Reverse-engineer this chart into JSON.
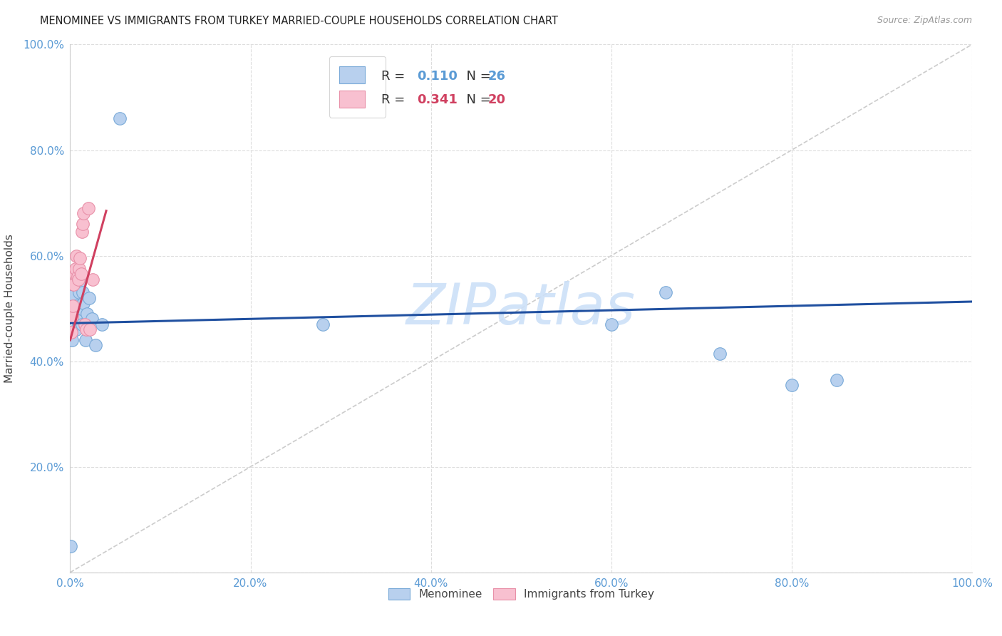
{
  "title": "MENOMINEE VS IMMIGRANTS FROM TURKEY MARRIED-COUPLE HOUSEHOLDS CORRELATION CHART",
  "source": "Source: ZipAtlas.com",
  "ylabel": "Married-couple Households",
  "menominee": {
    "name": "Menominee",
    "R": 0.11,
    "N": 26,
    "fill_color": "#b8d0ee",
    "edge_color": "#7aaad8",
    "line_color": "#2050a0",
    "x": [
      0.0008,
      0.002,
      0.004,
      0.006,
      0.007,
      0.008,
      0.009,
      0.01,
      0.011,
      0.012,
      0.013,
      0.014,
      0.015,
      0.017,
      0.019,
      0.021,
      0.024,
      0.028,
      0.035,
      0.055,
      0.28,
      0.6,
      0.66,
      0.72,
      0.8,
      0.85
    ],
    "y": [
      0.05,
      0.44,
      0.525,
      0.505,
      0.46,
      0.54,
      0.48,
      0.53,
      0.55,
      0.5,
      0.47,
      0.53,
      0.51,
      0.44,
      0.49,
      0.52,
      0.48,
      0.43,
      0.47,
      0.86,
      0.47,
      0.47,
      0.53,
      0.415,
      0.355,
      0.365
    ],
    "trend_x": [
      0.0,
      1.0
    ],
    "trend_y": [
      0.472,
      0.513
    ]
  },
  "turkey": {
    "name": "Immigrants from Turkey",
    "R": 0.341,
    "N": 20,
    "fill_color": "#f8c0d0",
    "edge_color": "#e890a8",
    "line_color": "#d04060",
    "x": [
      0.001,
      0.002,
      0.003,
      0.004,
      0.005,
      0.006,
      0.007,
      0.008,
      0.009,
      0.01,
      0.011,
      0.012,
      0.013,
      0.014,
      0.015,
      0.016,
      0.018,
      0.02,
      0.022,
      0.025
    ],
    "y": [
      0.455,
      0.485,
      0.505,
      0.545,
      0.565,
      0.575,
      0.6,
      0.56,
      0.555,
      0.575,
      0.595,
      0.565,
      0.645,
      0.66,
      0.68,
      0.47,
      0.46,
      0.69,
      0.46,
      0.555
    ],
    "trend_x": [
      0.0,
      0.04
    ],
    "trend_y": [
      0.44,
      0.685
    ]
  },
  "xlim": [
    0,
    1
  ],
  "ylim": [
    0,
    1
  ],
  "xticks": [
    0,
    0.2,
    0.4,
    0.6,
    0.8,
    1.0
  ],
  "yticks": [
    0,
    0.2,
    0.4,
    0.6,
    0.8,
    1.0
  ],
  "xticklabels": [
    "0.0%",
    "20.0%",
    "40.0%",
    "60.0%",
    "80.0%",
    "100.0%"
  ],
  "yticklabels": [
    "",
    "20.0%",
    "40.0%",
    "60.0%",
    "80.0%",
    "100.0%"
  ],
  "bg_color": "#ffffff",
  "grid_color": "#dddddd",
  "diag_color": "#cccccc",
  "tick_color": "#5b9bd5",
  "watermark_text": "ZIPatlas",
  "watermark_color": "#cce0f8",
  "title_color": "#222222",
  "source_color": "#999999",
  "marker_size": 160
}
